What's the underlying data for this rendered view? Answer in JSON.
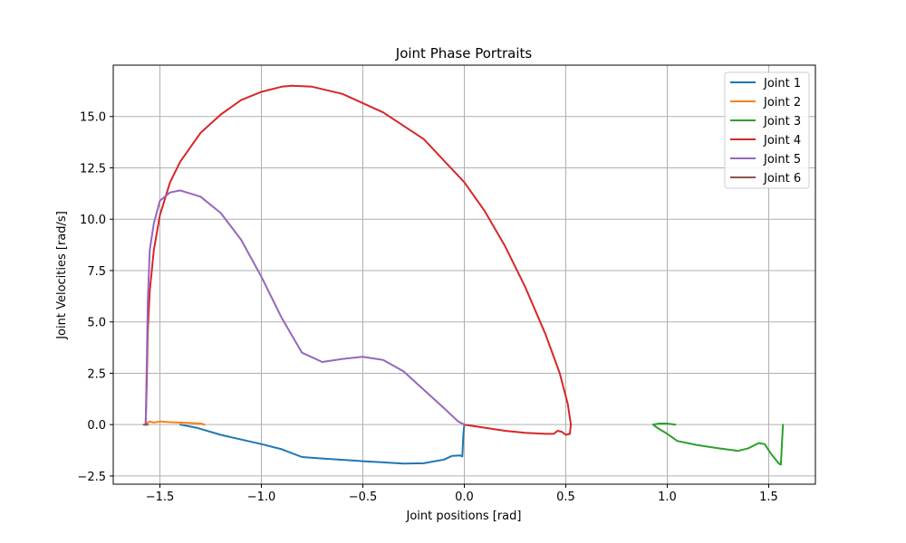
{
  "chart_data": {
    "type": "line",
    "title": "Joint Phase Portraits",
    "xlabel": "Joint positions [rad]",
    "ylabel": "Joint Velocities [rad/s]",
    "xlim": [
      -1.73,
      1.73
    ],
    "ylim": [
      -2.9,
      17.5
    ],
    "xticks": [
      -1.5,
      -1.0,
      -0.5,
      0.0,
      0.5,
      1.0,
      1.5
    ],
    "xtick_labels": [
      "−1.5",
      "−1.0",
      "−0.5",
      "0.0",
      "0.5",
      "1.0",
      "1.5"
    ],
    "yticks": [
      -2.5,
      0.0,
      2.5,
      5.0,
      7.5,
      10.0,
      12.5,
      15.0
    ],
    "ytick_labels": [
      "−2.5",
      "0.0",
      "2.5",
      "5.0",
      "7.5",
      "10.0",
      "12.5",
      "15.0"
    ],
    "grid": true,
    "legend_position": "top-right",
    "series": [
      {
        "name": "Joint 1",
        "color": "#1f77b4",
        "points": [
          [
            -1.4,
            0.0
          ],
          [
            -1.32,
            -0.15
          ],
          [
            -1.2,
            -0.5
          ],
          [
            -1.0,
            -0.95
          ],
          [
            -0.9,
            -1.2
          ],
          [
            -0.8,
            -1.58
          ],
          [
            -0.7,
            -1.65
          ],
          [
            -0.5,
            -1.78
          ],
          [
            -0.4,
            -1.84
          ],
          [
            -0.3,
            -1.9
          ],
          [
            -0.2,
            -1.88
          ],
          [
            -0.1,
            -1.7
          ],
          [
            -0.06,
            -1.52
          ],
          [
            -0.02,
            -1.5
          ],
          [
            -0.01,
            -1.55
          ],
          [
            -0.005,
            -0.5
          ],
          [
            0.0,
            0.0
          ]
        ]
      },
      {
        "name": "Joint 2",
        "color": "#ff7f0e",
        "points": [
          [
            -1.57,
            0.0
          ],
          [
            -1.56,
            0.1
          ],
          [
            -1.55,
            0.15
          ],
          [
            -1.53,
            0.1
          ],
          [
            -1.5,
            0.15
          ],
          [
            -1.45,
            0.12
          ],
          [
            -1.4,
            0.1
          ],
          [
            -1.35,
            0.08
          ],
          [
            -1.3,
            0.05
          ],
          [
            -1.28,
            0.0
          ]
        ]
      },
      {
        "name": "Joint 3",
        "color": "#2ca02c",
        "points": [
          [
            1.04,
            0.0
          ],
          [
            1.0,
            0.05
          ],
          [
            0.96,
            0.05
          ],
          [
            0.93,
            0.0
          ],
          [
            0.95,
            -0.15
          ],
          [
            1.0,
            -0.45
          ],
          [
            1.05,
            -0.8
          ],
          [
            1.15,
            -1.0
          ],
          [
            1.25,
            -1.15
          ],
          [
            1.35,
            -1.28
          ],
          [
            1.4,
            -1.15
          ],
          [
            1.45,
            -0.9
          ],
          [
            1.48,
            -0.95
          ],
          [
            1.51,
            -1.4
          ],
          [
            1.55,
            -1.9
          ],
          [
            1.56,
            -1.95
          ],
          [
            1.565,
            -1.0
          ],
          [
            1.57,
            0.0
          ]
        ]
      },
      {
        "name": "Joint 4",
        "color": "#d62728",
        "points": [
          [
            -1.57,
            0.0
          ],
          [
            -1.565,
            2.0
          ],
          [
            -1.56,
            4.5
          ],
          [
            -1.55,
            6.5
          ],
          [
            -1.53,
            8.5
          ],
          [
            -1.5,
            10.2
          ],
          [
            -1.45,
            11.8
          ],
          [
            -1.4,
            12.8
          ],
          [
            -1.3,
            14.2
          ],
          [
            -1.2,
            15.1
          ],
          [
            -1.1,
            15.8
          ],
          [
            -1.0,
            16.2
          ],
          [
            -0.9,
            16.45
          ],
          [
            -0.85,
            16.5
          ],
          [
            -0.75,
            16.45
          ],
          [
            -0.6,
            16.1
          ],
          [
            -0.4,
            15.2
          ],
          [
            -0.2,
            13.9
          ],
          [
            0.0,
            11.8
          ],
          [
            0.1,
            10.4
          ],
          [
            0.2,
            8.7
          ],
          [
            0.3,
            6.7
          ],
          [
            0.4,
            4.4
          ],
          [
            0.47,
            2.5
          ],
          [
            0.51,
            1.0
          ],
          [
            0.525,
            0.0
          ],
          [
            0.52,
            -0.45
          ],
          [
            0.5,
            -0.5
          ],
          [
            0.48,
            -0.35
          ],
          [
            0.46,
            -0.3
          ],
          [
            0.44,
            -0.45
          ],
          [
            0.4,
            -0.45
          ],
          [
            0.3,
            -0.4
          ],
          [
            0.2,
            -0.3
          ],
          [
            0.1,
            -0.15
          ],
          [
            0.0,
            0.0
          ]
        ]
      },
      {
        "name": "Joint 5",
        "color": "#9467bd",
        "points": [
          [
            -1.57,
            0.0
          ],
          [
            -1.565,
            3.0
          ],
          [
            -1.56,
            6.0
          ],
          [
            -1.55,
            8.5
          ],
          [
            -1.53,
            9.8
          ],
          [
            -1.5,
            10.9
          ],
          [
            -1.45,
            11.3
          ],
          [
            -1.4,
            11.4
          ],
          [
            -1.3,
            11.1
          ],
          [
            -1.2,
            10.3
          ],
          [
            -1.1,
            9.0
          ],
          [
            -1.0,
            7.2
          ],
          [
            -0.9,
            5.2
          ],
          [
            -0.8,
            3.5
          ],
          [
            -0.7,
            3.05
          ],
          [
            -0.6,
            3.2
          ],
          [
            -0.5,
            3.3
          ],
          [
            -0.4,
            3.15
          ],
          [
            -0.3,
            2.6
          ],
          [
            -0.2,
            1.7
          ],
          [
            -0.1,
            0.8
          ],
          [
            -0.03,
            0.15
          ],
          [
            0.0,
            0.0
          ]
        ]
      },
      {
        "name": "Joint 6",
        "color": "#8c564b",
        "points": [
          [
            -1.58,
            0.0
          ],
          [
            -1.57,
            0.0
          ],
          [
            -1.56,
            0.0
          ]
        ]
      }
    ]
  }
}
